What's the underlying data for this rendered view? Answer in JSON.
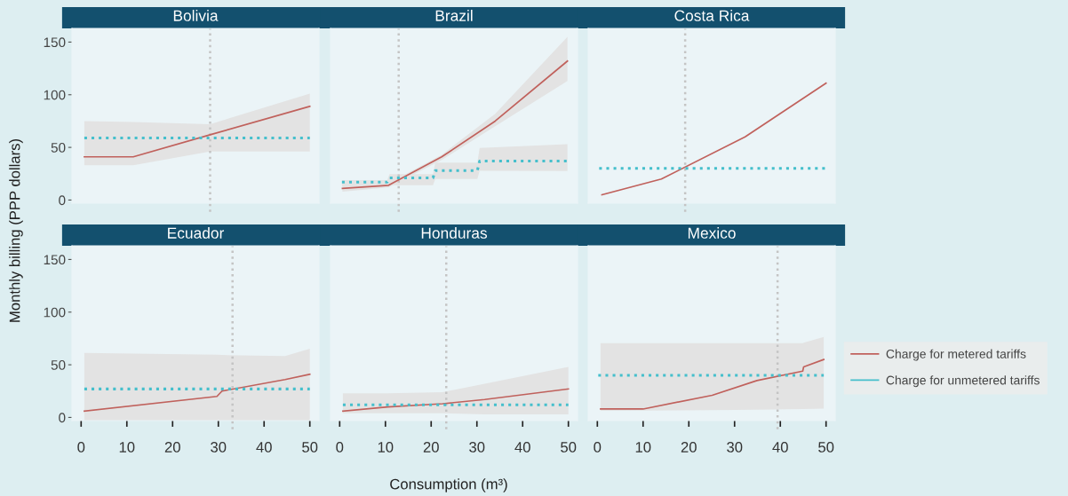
{
  "chart_data": [
    {
      "type": "line",
      "title": "Bolivia",
      "ylabel": "Monthly billing (PPP dollars)",
      "xlim": [
        -2,
        52
      ],
      "ylim": [
        -3,
        163
      ],
      "yticks": [
        0,
        50,
        100,
        150
      ],
      "tick_labels": "y",
      "series": [
        {
          "color": "#c0615c",
          "line_style": "solid",
          "x": [
            0.7,
            11.4,
            28.2,
            50
          ],
          "values": [
            41,
            41,
            62,
            89
          ],
          "lower": [
            33,
            33,
            46,
            46
          ],
          "upper": [
            75,
            74,
            72,
            101
          ]
        },
        {
          "color": "#45bfcc",
          "line_style": "dotted",
          "x": [
            0.7,
            50
          ],
          "values": [
            59,
            59
          ]
        }
      ],
      "ref_lines": [
        {
          "axis": "x",
          "value": 28.2,
          "color": "#c4c4c4",
          "line_style": "dotted"
        }
      ]
    },
    {
      "type": "line",
      "title": "Brazil",
      "xlim": [
        -2,
        52
      ],
      "ylim": [
        -3,
        163
      ],
      "tick_labels": false,
      "series": [
        {
          "color": "#c0615c",
          "line_style": "solid",
          "x": [
            0.6,
            10.7,
            22.3,
            34,
            49.8
          ],
          "values": [
            11,
            14,
            41,
            75,
            132
          ],
          "lower": [
            8,
            12,
            38,
            70,
            113
          ],
          "upper": [
            13,
            16,
            43,
            82,
            155
          ]
        },
        {
          "color": "#45bfcc",
          "line_style": "dotted",
          "x": [
            0.5,
            10.4,
            10.9,
            20.4,
            20.9,
            30.1,
            30.6,
            49.8
          ],
          "values": [
            17,
            17,
            21,
            21,
            28,
            28,
            37,
            37
          ],
          "lower": [
            13,
            13,
            14,
            14,
            20,
            20,
            27.8,
            27.5
          ],
          "upper": [
            19,
            19,
            24.7,
            24.7,
            35.5,
            35.5,
            49.4,
            53
          ]
        }
      ],
      "ref_lines": [
        {
          "axis": "x",
          "value": 12.9,
          "color": "#c4c4c4",
          "line_style": "dotted"
        }
      ]
    },
    {
      "type": "line",
      "title": "Costa Rica",
      "xlim": [
        -2,
        52
      ],
      "ylim": [
        -3,
        163
      ],
      "tick_labels": false,
      "series": [
        {
          "color": "#c0615c",
          "line_style": "solid",
          "x": [
            1.0,
            14,
            32.3,
            50
          ],
          "values": [
            5,
            20,
            60,
            111
          ]
        },
        {
          "color": "#45bfcc",
          "line_style": "dotted",
          "x": [
            0.4,
            50
          ],
          "values": [
            30,
            30
          ]
        }
      ],
      "ref_lines": [
        {
          "axis": "x",
          "value": 19.2,
          "color": "#c4c4c4",
          "line_style": "dotted"
        }
      ]
    },
    {
      "type": "line",
      "title": "Ecuador",
      "xlim": [
        -2,
        52
      ],
      "ylim": [
        -3,
        163
      ],
      "xticks": [
        0,
        10,
        20,
        30,
        40,
        50
      ],
      "yticks": [
        0,
        50,
        100,
        150
      ],
      "series": [
        {
          "color": "#c0615c",
          "line_style": "solid",
          "x": [
            0.7,
            29.7,
            30.8,
            44.6,
            50
          ],
          "values": [
            6,
            20,
            25,
            36,
            41
          ],
          "lower": [
            -3,
            -3,
            -3,
            -3,
            -3
          ],
          "upper": [
            61.3,
            59.5,
            59.3,
            58.2,
            65.2
          ]
        },
        {
          "color": "#45bfcc",
          "line_style": "dotted",
          "x": [
            0.7,
            50
          ],
          "values": [
            27,
            27
          ]
        }
      ],
      "ref_lines": [
        {
          "axis": "x",
          "value": 33.1,
          "color": "#c4c4c4",
          "line_style": "dotted"
        }
      ]
    },
    {
      "type": "line",
      "title": "Honduras",
      "xlabel": "Consumption (m³)",
      "xlim": [
        -2,
        52
      ],
      "ylim": [
        -3,
        163
      ],
      "xticks": [
        0,
        10,
        20,
        30,
        40,
        50
      ],
      "tick_labels": "x",
      "series": [
        {
          "color": "#c0615c",
          "line_style": "solid",
          "x": [
            0.7,
            10.5,
            22.5,
            31.7,
            50
          ],
          "values": [
            6,
            10,
            13,
            17,
            27
          ],
          "lower": [
            4,
            4,
            4,
            3,
            3
          ],
          "upper": [
            23,
            23,
            24,
            32,
            48
          ]
        },
        {
          "color": "#45bfcc",
          "line_style": "dotted",
          "x": [
            0.7,
            50
          ],
          "values": [
            12,
            12
          ]
        }
      ],
      "ref_lines": [
        {
          "axis": "x",
          "value": 23.3,
          "color": "#c4c4c4",
          "line_style": "dotted"
        }
      ]
    },
    {
      "type": "line",
      "title": "Mexico",
      "xlim": [
        -2,
        52
      ],
      "ylim": [
        -3,
        163
      ],
      "xticks": [
        0,
        10,
        20,
        30,
        40,
        50
      ],
      "tick_labels": "x",
      "legend": "right",
      "series": [
        {
          "name": "Charge for metered tariffs",
          "color": "#c0615c",
          "line_style": "solid",
          "x": [
            0.7,
            10,
            25.1,
            34.9,
            44.9,
            45.1,
            49.5
          ],
          "values": [
            8,
            8,
            21,
            35,
            44,
            48,
            55
          ],
          "lower": [
            6.3,
            6.5,
            7,
            7.4,
            8,
            8,
            8.4
          ],
          "upper": [
            70.6,
            70.6,
            70.6,
            70.6,
            70.6,
            71,
            76.5
          ]
        },
        {
          "name": "Charge for unmetered tariffs",
          "color": "#45bfcc",
          "line_style": "dotted",
          "x": [
            0.2,
            49.5
          ],
          "values": [
            40,
            40
          ]
        }
      ],
      "ref_lines": [
        {
          "axis": "x",
          "value": 39.4,
          "color": "#c4c4c4",
          "line_style": "dotted"
        }
      ]
    }
  ]
}
